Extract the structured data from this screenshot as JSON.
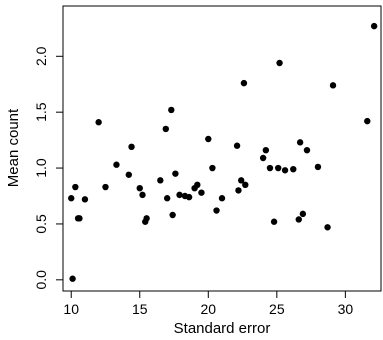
{
  "chart_data": {
    "type": "scatter",
    "title": "",
    "xlabel": "Standard error",
    "ylabel": "Mean count",
    "xlim": [
      9.4,
      32.6
    ],
    "ylim": [
      -0.1,
      2.45
    ],
    "x_ticks": [
      10,
      15,
      20,
      25,
      30
    ],
    "y_ticks": [
      0.0,
      0.5,
      1.0,
      1.5,
      2.0
    ],
    "x_tick_labels": [
      "10",
      "15",
      "20",
      "25",
      "30"
    ],
    "y_tick_labels": [
      "0.0",
      "0.5",
      "1.0",
      "1.5",
      "2.0"
    ],
    "grid": false,
    "legend": "none",
    "point_color": "#000000",
    "series": [
      {
        "x": [
          10.0,
          10.1,
          10.3,
          10.5,
          10.6,
          11.0,
          12.0,
          12.5,
          13.3,
          14.2,
          14.4,
          15.0,
          15.2,
          15.4,
          15.5,
          16.5,
          16.9,
          17.0,
          17.3,
          17.4,
          17.6,
          17.9,
          18.3,
          18.6,
          19.0,
          19.2,
          19.5,
          20.0,
          20.3,
          20.6,
          21.0,
          22.1,
          22.2,
          22.4,
          22.6,
          22.7,
          24.0,
          24.2,
          24.5,
          24.8,
          25.1,
          25.2,
          25.6,
          26.2,
          26.6,
          26.7,
          26.9,
          27.2,
          28.0,
          28.7,
          29.1,
          31.6,
          32.1
        ],
        "y": [
          0.73,
          0.01,
          0.83,
          0.55,
          0.55,
          0.72,
          1.41,
          0.83,
          1.03,
          0.94,
          1.19,
          0.82,
          0.76,
          0.52,
          0.55,
          0.89,
          1.35,
          0.73,
          1.52,
          0.58,
          0.95,
          0.76,
          0.75,
          0.74,
          0.82,
          0.85,
          0.78,
          1.26,
          1.0,
          0.62,
          0.73,
          1.2,
          0.8,
          0.89,
          1.76,
          0.85,
          1.09,
          1.16,
          1.0,
          0.52,
          1.0,
          1.94,
          0.98,
          0.99,
          0.54,
          1.23,
          0.59,
          1.16,
          1.01,
          0.47,
          1.74,
          1.42,
          2.27
        ]
      }
    ]
  }
}
